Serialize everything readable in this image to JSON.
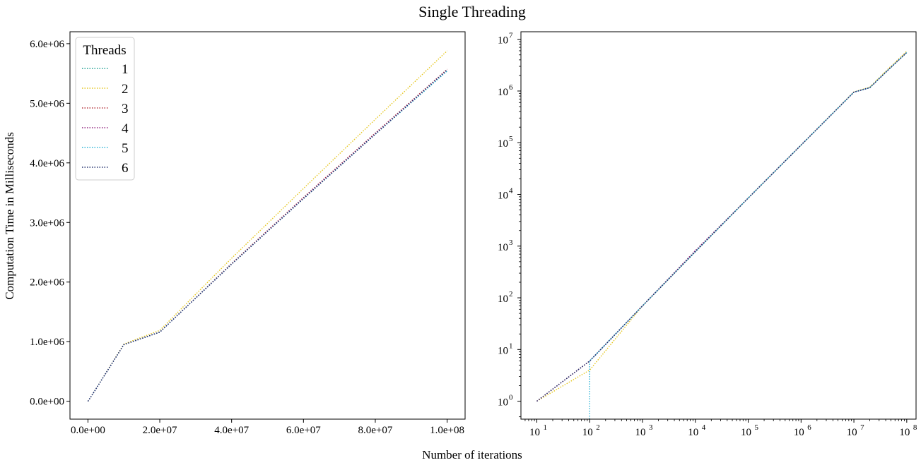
{
  "figure": {
    "title": "Single Threading",
    "xlabel": "Number of iterations",
    "ylabel": "Computation Time in Milliseconds"
  },
  "legend": {
    "title": "Threads",
    "placement": "upper-left"
  },
  "chart_data": [
    {
      "type": "line",
      "scale": "linear",
      "line_style": "dotted",
      "xlim": [
        -5000000,
        105000000
      ],
      "ylim": [
        -300000,
        6200000
      ],
      "xticks": [
        0,
        20000000,
        40000000,
        60000000,
        80000000,
        100000000
      ],
      "xtick_labels": [
        "0.0e+00",
        "2.0e+07",
        "4.0e+07",
        "6.0e+07",
        "8.0e+07",
        "1.0e+08"
      ],
      "yticks": [
        0,
        1000000,
        2000000,
        3000000,
        4000000,
        5000000,
        6000000
      ],
      "ytick_labels": [
        "0.0e+00",
        "1.0e+06",
        "2.0e+06",
        "3.0e+06",
        "4.0e+06",
        "5.0e+06",
        "6.0e+06"
      ],
      "grid": false,
      "series": [
        {
          "name": "1",
          "color": "#1a9e8f",
          "x": [
            10,
            100,
            1000,
            10000,
            100000,
            1000000,
            10000000,
            20000000,
            40000000,
            60000000,
            80000000,
            100000000
          ],
          "y": [
            1,
            6,
            70,
            780,
            8500,
            90000,
            950000,
            1160000,
            2310000,
            3400000,
            4480000,
            5550000
          ]
        },
        {
          "name": "2",
          "color": "#e5c61c",
          "x": [
            10,
            100,
            1000,
            10000,
            100000,
            1000000,
            10000000,
            20000000,
            40000000,
            60000000,
            80000000,
            100000000
          ],
          "y": [
            1,
            4,
            70,
            780,
            8500,
            90000,
            960000,
            1190000,
            2400000,
            3570000,
            4730000,
            5880000
          ]
        },
        {
          "name": "3",
          "color": "#b5323c",
          "x": [
            10,
            100,
            1000,
            10000,
            100000,
            1000000,
            10000000,
            20000000,
            40000000,
            60000000,
            80000000,
            100000000
          ],
          "y": [
            1,
            6,
            70,
            800,
            8500,
            90000,
            950000,
            1160000,
            2310000,
            3420000,
            4500000,
            5570000
          ]
        },
        {
          "name": "4",
          "color": "#8e1f7a",
          "x": [
            10,
            100,
            1000,
            10000,
            100000,
            1000000,
            10000000,
            20000000,
            40000000,
            60000000,
            80000000,
            100000000
          ],
          "y": [
            1,
            6,
            70,
            820,
            8500,
            90000,
            950000,
            1160000,
            2300000,
            3410000,
            4490000,
            5560000
          ]
        },
        {
          "name": "5",
          "color": "#29b3d6",
          "x": [
            100,
            100,
            1000,
            10000,
            100000,
            1000000,
            10000000,
            20000000,
            40000000,
            60000000,
            80000000,
            100000000
          ],
          "y": [
            0.45,
            6,
            70,
            780,
            8500,
            90000,
            950000,
            1160000,
            2300000,
            3400000,
            4480000,
            5540000
          ]
        },
        {
          "name": "6",
          "color": "#23306e",
          "x": [
            10,
            100,
            1000,
            10000,
            100000,
            1000000,
            10000000,
            20000000,
            40000000,
            60000000,
            80000000,
            100000000
          ],
          "y": [
            1,
            6,
            70,
            780,
            8500,
            90000,
            950000,
            1160000,
            2300000,
            3400000,
            4480000,
            5560000
          ]
        }
      ]
    },
    {
      "type": "line",
      "scale": "log",
      "line_style": "dotted",
      "xlim": [
        5,
        150000000
      ],
      "ylim": [
        0.45,
        14000000
      ],
      "xticks": [
        10,
        100,
        1000,
        10000,
        100000,
        1000000,
        10000000,
        100000000
      ],
      "xtick_exponents": [
        "1",
        "2",
        "3",
        "4",
        "5",
        "6",
        "7",
        "8"
      ],
      "yticks": [
        1,
        10,
        100,
        1000,
        10000,
        100000,
        1000000,
        10000000
      ],
      "ytick_exponents": [
        "0",
        "1",
        "2",
        "3",
        "4",
        "5",
        "6",
        "7"
      ],
      "tick_base": "10",
      "grid": false,
      "series_from": "same as left panel"
    }
  ]
}
